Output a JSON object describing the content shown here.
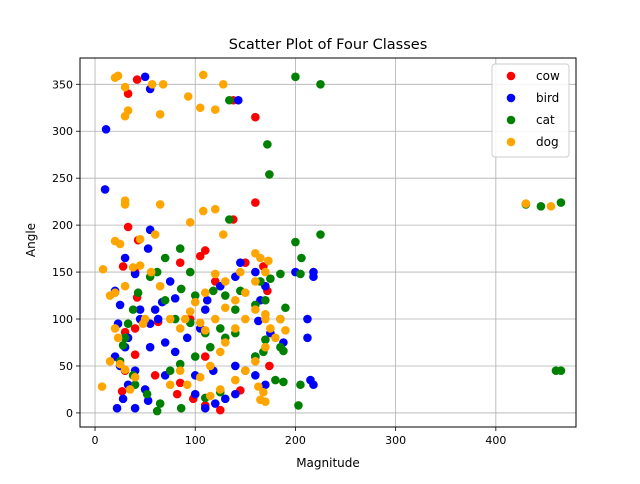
{
  "chart_data": {
    "type": "scatter",
    "title": "Scatter Plot of Four Classes",
    "xlabel": "Magnitude",
    "ylabel": "Angle",
    "xlim": [
      -15,
      480
    ],
    "ylim": [
      -15,
      378
    ],
    "xticks": [
      0,
      100,
      200,
      300,
      400
    ],
    "yticks": [
      0,
      50,
      100,
      150,
      200,
      250,
      300,
      350
    ],
    "grid": true,
    "legend_position": "top-right",
    "series": [
      {
        "name": "cow",
        "color": "#ff0000",
        "points": [
          [
            42,
            355
          ],
          [
            33,
            340
          ],
          [
            138,
            333
          ],
          [
            160,
            315
          ],
          [
            160,
            224
          ],
          [
            138,
            206
          ],
          [
            33,
            198
          ],
          [
            43,
            184
          ],
          [
            85,
            160
          ],
          [
            110,
            173
          ],
          [
            40,
            150
          ],
          [
            28,
            156
          ],
          [
            105,
            167
          ],
          [
            168,
            156
          ],
          [
            172,
            130
          ],
          [
            42,
            123
          ],
          [
            40,
            90
          ],
          [
            30,
            86
          ],
          [
            40,
            62
          ],
          [
            110,
            60
          ],
          [
            30,
            45
          ],
          [
            60,
            40
          ],
          [
            85,
            32
          ],
          [
            27,
            23
          ],
          [
            82,
            20
          ],
          [
            98,
            15
          ],
          [
            110,
            8
          ],
          [
            125,
            3
          ],
          [
            145,
            24
          ],
          [
            174,
            50
          ],
          [
            150,
            160
          ],
          [
            95,
            100
          ],
          [
            63,
            97
          ],
          [
            120,
            140
          ]
        ]
      },
      {
        "name": "bird",
        "color": "#0000ff",
        "points": [
          [
            50,
            358
          ],
          [
            55,
            345
          ],
          [
            143,
            333
          ],
          [
            11,
            302
          ],
          [
            10,
            238
          ],
          [
            55,
            195
          ],
          [
            53,
            175
          ],
          [
            30,
            165
          ],
          [
            40,
            148
          ],
          [
            20,
            130
          ],
          [
            25,
            115
          ],
          [
            45,
            110
          ],
          [
            63,
            100
          ],
          [
            55,
            95
          ],
          [
            23,
            95
          ],
          [
            30,
            70
          ],
          [
            20,
            60
          ],
          [
            25,
            50
          ],
          [
            40,
            45
          ],
          [
            33,
            30
          ],
          [
            28,
            15
          ],
          [
            22,
            5
          ],
          [
            40,
            5
          ],
          [
            53,
            13
          ],
          [
            50,
            25
          ],
          [
            70,
            40
          ],
          [
            80,
            65
          ],
          [
            92,
            80
          ],
          [
            105,
            90
          ],
          [
            110,
            110
          ],
          [
            112,
            120
          ],
          [
            125,
            135
          ],
          [
            140,
            145
          ],
          [
            145,
            160
          ],
          [
            160,
            150
          ],
          [
            170,
            135
          ],
          [
            165,
            120
          ],
          [
            163,
            98
          ],
          [
            175,
            85
          ],
          [
            188,
            75
          ],
          [
            160,
            60
          ],
          [
            140,
            50
          ],
          [
            118,
            45
          ],
          [
            100,
            40
          ],
          [
            100,
            20
          ],
          [
            110,
            5
          ],
          [
            120,
            10
          ],
          [
            130,
            15
          ],
          [
            140,
            20
          ],
          [
            160,
            40
          ],
          [
            170,
            30
          ],
          [
            215,
            35
          ],
          [
            218,
            30
          ],
          [
            212,
            100
          ],
          [
            212,
            80
          ],
          [
            200,
            150
          ],
          [
            218,
            150
          ],
          [
            218,
            145
          ],
          [
            75,
            140
          ],
          [
            80,
            122
          ],
          [
            67,
            118
          ],
          [
            60,
            110
          ],
          [
            45,
            100
          ],
          [
            70,
            75
          ],
          [
            55,
            70
          ],
          [
            33,
            80
          ]
        ]
      },
      {
        "name": "cat",
        "color": "#008000",
        "points": [
          [
            200,
            358
          ],
          [
            225,
            350
          ],
          [
            134,
            333
          ],
          [
            172,
            286
          ],
          [
            174,
            254
          ],
          [
            134,
            206
          ],
          [
            200,
            182
          ],
          [
            225,
            190
          ],
          [
            206,
            165
          ],
          [
            205,
            148
          ],
          [
            185,
            148
          ],
          [
            175,
            143
          ],
          [
            165,
            140
          ],
          [
            95,
            150
          ],
          [
            85,
            175
          ],
          [
            70,
            165
          ],
          [
            62,
            150
          ],
          [
            55,
            145
          ],
          [
            43,
            128
          ],
          [
            38,
            110
          ],
          [
            33,
            95
          ],
          [
            30,
            80
          ],
          [
            28,
            72
          ],
          [
            25,
            55
          ],
          [
            38,
            40
          ],
          [
            40,
            30
          ],
          [
            52,
            20
          ],
          [
            65,
            10
          ],
          [
            62,
            2
          ],
          [
            86,
            5
          ],
          [
            110,
            16
          ],
          [
            125,
            22
          ],
          [
            150,
            45
          ],
          [
            160,
            60
          ],
          [
            168,
            65
          ],
          [
            170,
            78
          ],
          [
            188,
            66
          ],
          [
            185,
            70
          ],
          [
            190,
            112
          ],
          [
            185,
            100
          ],
          [
            170,
            120
          ],
          [
            160,
            115
          ],
          [
            140,
            110
          ],
          [
            125,
            90
          ],
          [
            110,
            85
          ],
          [
            95,
            96
          ],
          [
            80,
            100
          ],
          [
            70,
            120
          ],
          [
            86,
            132
          ],
          [
            100,
            125
          ],
          [
            118,
            130
          ],
          [
            130,
            125
          ],
          [
            145,
            130
          ],
          [
            140,
            85
          ],
          [
            130,
            80
          ],
          [
            115,
            70
          ],
          [
            100,
            60
          ],
          [
            85,
            52
          ],
          [
            75,
            45
          ],
          [
            180,
            35
          ],
          [
            188,
            33
          ],
          [
            205,
            30
          ],
          [
            203,
            8
          ],
          [
            430,
            222
          ],
          [
            445,
            220
          ],
          [
            465,
            224
          ],
          [
            460,
            45
          ],
          [
            465,
            45
          ]
        ]
      },
      {
        "name": "dog",
        "color": "#ffa500",
        "points": [
          [
            20,
            357
          ],
          [
            23,
            359
          ],
          [
            57,
            350
          ],
          [
            68,
            350
          ],
          [
            108,
            360
          ],
          [
            128,
            350
          ],
          [
            30,
            347
          ],
          [
            93,
            337
          ],
          [
            105,
            325
          ],
          [
            120,
            323
          ],
          [
            33,
            322
          ],
          [
            30,
            316
          ],
          [
            65,
            318
          ],
          [
            30,
            226
          ],
          [
            30,
            222
          ],
          [
            65,
            222
          ],
          [
            120,
            217
          ],
          [
            108,
            215
          ],
          [
            95,
            203
          ],
          [
            128,
            190
          ],
          [
            60,
            190
          ],
          [
            45,
            185
          ],
          [
            20,
            183
          ],
          [
            25,
            180
          ],
          [
            8,
            153
          ],
          [
            38,
            155
          ],
          [
            45,
            157
          ],
          [
            56,
            150
          ],
          [
            65,
            135
          ],
          [
            30,
            135
          ],
          [
            20,
            128
          ],
          [
            15,
            125
          ],
          [
            50,
            100
          ],
          [
            48,
            95
          ],
          [
            20,
            90
          ],
          [
            23,
            80
          ],
          [
            15,
            55
          ],
          [
            25,
            52
          ],
          [
            30,
            46
          ],
          [
            40,
            38
          ],
          [
            35,
            25
          ],
          [
            7,
            28
          ],
          [
            75,
            30
          ],
          [
            85,
            45
          ],
          [
            92,
            30
          ],
          [
            105,
            38
          ],
          [
            115,
            50
          ],
          [
            125,
            65
          ],
          [
            130,
            75
          ],
          [
            140,
            90
          ],
          [
            150,
            100
          ],
          [
            160,
            110
          ],
          [
            170,
            105
          ],
          [
            185,
            100
          ],
          [
            190,
            88
          ],
          [
            180,
            80
          ],
          [
            170,
            70
          ],
          [
            160,
            55
          ],
          [
            150,
            45
          ],
          [
            140,
            35
          ],
          [
            125,
            25
          ],
          [
            115,
            18
          ],
          [
            163,
            28
          ],
          [
            168,
            22
          ],
          [
            165,
            14
          ],
          [
            170,
            12
          ],
          [
            160,
            170
          ],
          [
            165,
            165
          ],
          [
            170,
            150
          ],
          [
            145,
            150
          ],
          [
            120,
            148
          ],
          [
            130,
            140
          ],
          [
            110,
            128
          ],
          [
            100,
            118
          ],
          [
            95,
            108
          ],
          [
            75,
            100
          ],
          [
            85,
            90
          ],
          [
            90,
            100
          ],
          [
            105,
            96
          ],
          [
            110,
            88
          ],
          [
            120,
            100
          ],
          [
            130,
            112
          ],
          [
            140,
            120
          ],
          [
            150,
            128
          ],
          [
            160,
            140
          ],
          [
            173,
            162
          ],
          [
            170,
            100
          ],
          [
            175,
            90
          ],
          [
            430,
            223
          ],
          [
            455,
            220
          ]
        ]
      }
    ]
  }
}
